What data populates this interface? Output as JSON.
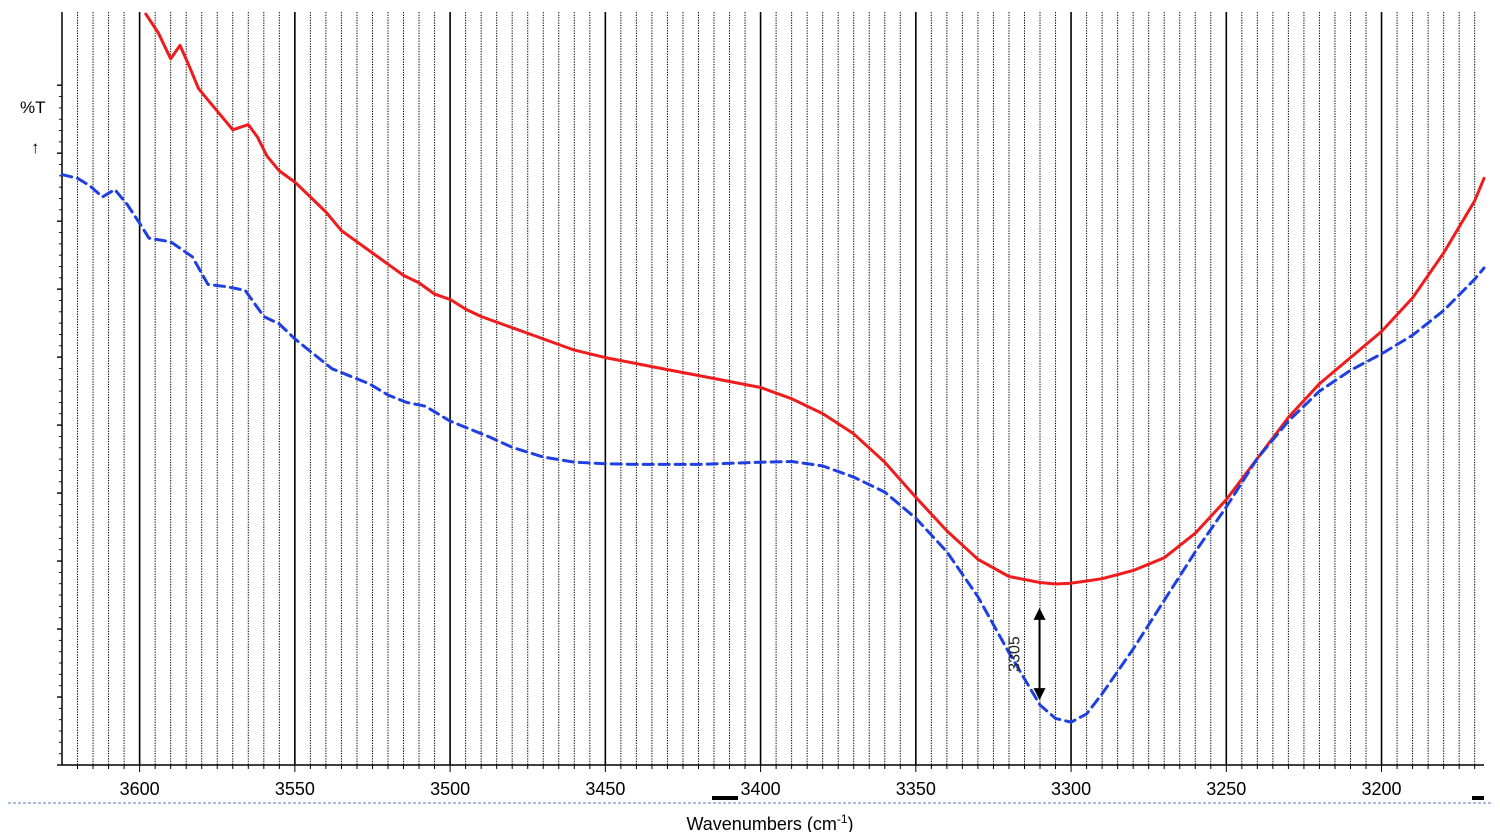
{
  "chart_data": {
    "type": "line",
    "title": "",
    "xlabel": "Wavenumbers (cm-1)",
    "xlabel_main": "Wavenumbers (cm",
    "xlabel_sup": "-1",
    "xlabel_close": ")",
    "ylabel": "%T",
    "ylabel_arrow": "↑",
    "xlim": [
      3625,
      3167
    ],
    "ylim": [
      0,
      100
    ],
    "grid": true,
    "x_ticks": [
      3600,
      3550,
      3500,
      3450,
      3400,
      3350,
      3300,
      3250,
      3200
    ],
    "x_tick_labels": [
      "3600",
      "3550",
      "3500",
      "3450",
      "3400",
      "3350",
      "3300",
      "3250",
      "3200"
    ],
    "annotation": {
      "text": "3305",
      "x": 3305,
      "y_from": 20.5,
      "y_to": 5.2
    },
    "colors": {
      "solid_series": "#ee1c1c",
      "dashed_series": "#1f3fe0",
      "grid": "#000000"
    },
    "series": [
      {
        "style": "solid",
        "x": [
          3598,
          3594,
          3590,
          3587,
          3584,
          3581,
          3578,
          3575,
          3570,
          3565,
          3562,
          3559,
          3555,
          3550,
          3545,
          3540,
          3535,
          3530,
          3525,
          3520,
          3515,
          3510,
          3505,
          3500,
          3495,
          3490,
          3480,
          3470,
          3460,
          3450,
          3440,
          3430,
          3420,
          3410,
          3400,
          3390,
          3380,
          3370,
          3360,
          3350,
          3340,
          3330,
          3320,
          3310,
          3305,
          3300,
          3295,
          3290,
          3280,
          3270,
          3260,
          3250,
          3240,
          3230,
          3220,
          3210,
          3200,
          3190,
          3180,
          3170,
          3167
        ],
        "y": [
          100,
          97.5,
          94,
          95.8,
          93,
          90,
          88.5,
          87,
          84.5,
          85.2,
          83.5,
          81,
          79,
          77.5,
          75.5,
          73.5,
          71,
          69.5,
          68,
          66.5,
          65,
          64,
          62.5,
          61.8,
          60.5,
          59.5,
          58,
          56.5,
          55,
          54,
          53.2,
          52.4,
          51.6,
          50.8,
          50,
          48.5,
          46.5,
          43.8,
          40,
          35.3,
          30.8,
          27,
          24.7,
          23.9,
          23.7,
          23.8,
          24.1,
          24.4,
          25.5,
          27.2,
          30.5,
          35,
          40.5,
          46,
          50.5,
          54,
          57.5,
          62,
          68,
          75,
          78
        ]
      },
      {
        "style": "dashed",
        "x": [
          3625,
          3620,
          3616,
          3612,
          3608,
          3604,
          3600,
          3597,
          3590,
          3583,
          3578,
          3572,
          3566,
          3560,
          3555,
          3550,
          3544,
          3538,
          3532,
          3526,
          3520,
          3514,
          3508,
          3500,
          3494,
          3488,
          3480,
          3470,
          3460,
          3450,
          3440,
          3420,
          3400,
          3390,
          3380,
          3370,
          3360,
          3350,
          3340,
          3330,
          3320,
          3310,
          3305,
          3300,
          3295,
          3290,
          3280,
          3270,
          3260,
          3250,
          3240,
          3230,
          3220,
          3210,
          3200,
          3190,
          3180,
          3170,
          3167
        ],
        "y": [
          78.5,
          78,
          77,
          75.5,
          76.5,
          74.5,
          72,
          70,
          69.5,
          67.5,
          63.8,
          63.5,
          63,
          59.5,
          58.5,
          56.5,
          54.5,
          52.5,
          51.5,
          50.5,
          49,
          48,
          47.5,
          45.5,
          44.5,
          43.5,
          42,
          40.7,
          40,
          39.8,
          39.7,
          39.7,
          40,
          40.1,
          39.5,
          38,
          36,
          32.5,
          28,
          22,
          14.5,
          7.5,
          5.7,
          5.2,
          6.3,
          9,
          15,
          21.5,
          28,
          34,
          40.5,
          45.5,
          49.5,
          52.3,
          54.5,
          57,
          60.3,
          64.5,
          66
        ]
      }
    ]
  }
}
